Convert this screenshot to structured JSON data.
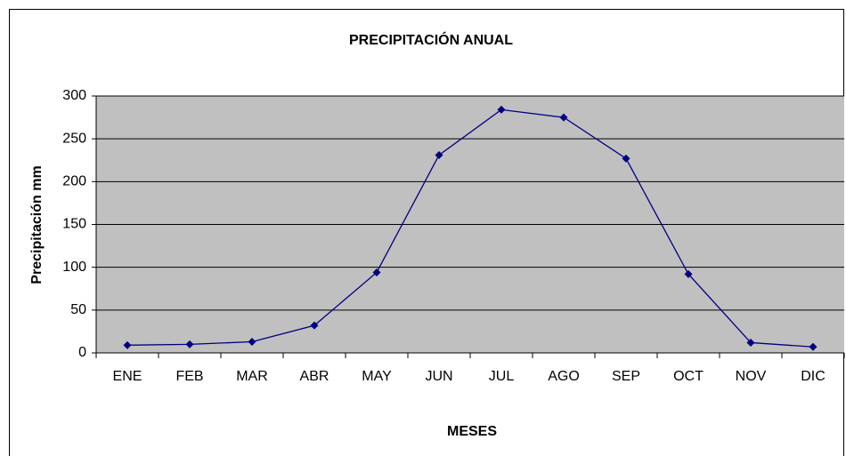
{
  "chart_data": {
    "type": "line",
    "title": "PRECIPITACIÓN ANUAL",
    "x_label": "MESES",
    "y_label": "Precipitación mm",
    "categories": [
      "ENE",
      "FEB",
      "MAR",
      "ABR",
      "MAY",
      "JUN",
      "JUL",
      "AGO",
      "SEP",
      "OCT",
      "NOV",
      "DIC"
    ],
    "series": [
      {
        "name": "Precipitación",
        "color": "#000080",
        "values": [
          9,
          10,
          13,
          32,
          94,
          231,
          284,
          275,
          227,
          92,
          12,
          7
        ]
      }
    ],
    "ylim": [
      0,
      300
    ],
    "yticks": [
      0,
      50,
      100,
      150,
      200,
      250,
      300
    ],
    "grid": true,
    "legend": false
  }
}
